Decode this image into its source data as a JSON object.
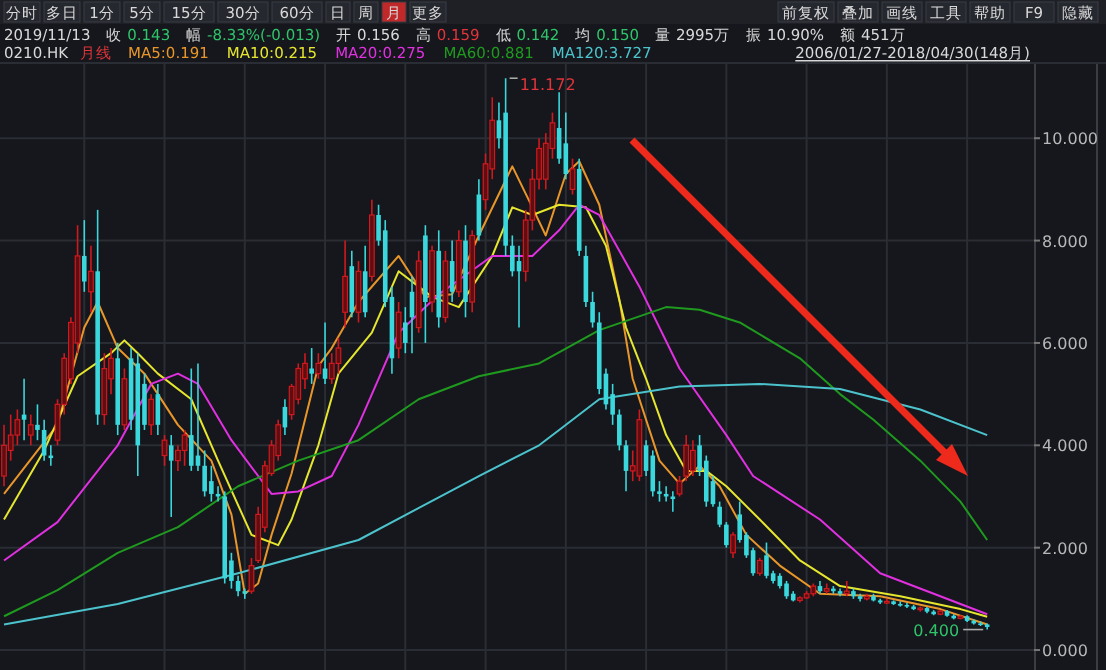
{
  "chart_data": {
    "type": "candlestick",
    "categories": [
      null,
      null,
      null,
      null,
      null,
      null,
      null,
      null,
      null,
      null,
      null,
      null,
      null,
      null,
      null,
      null,
      null,
      null,
      null,
      null,
      null,
      null,
      null,
      null,
      null,
      null,
      null,
      null,
      null,
      null,
      null,
      null,
      null,
      null,
      null,
      null,
      null,
      null,
      null,
      null,
      null,
      null,
      null,
      null,
      null,
      null,
      null,
      null,
      null,
      null,
      null,
      null,
      null,
      null,
      null,
      null,
      null,
      null,
      null,
      null,
      null,
      null,
      null,
      null,
      null,
      null,
      null,
      null,
      null,
      null,
      null,
      null,
      null,
      null,
      null,
      null,
      null,
      null,
      null,
      null,
      null,
      null,
      null,
      null,
      null,
      null,
      null,
      null,
      null,
      null,
      null,
      null,
      null,
      null,
      null,
      null,
      null,
      null,
      null,
      null,
      null,
      null,
      null,
      null,
      null,
      null,
      null,
      null,
      null,
      null,
      null,
      null,
      null,
      null,
      null,
      null,
      null,
      null,
      null,
      null,
      null,
      null,
      null,
      null,
      null,
      null,
      null,
      null,
      null,
      null,
      null,
      null,
      null,
      null,
      null,
      null,
      null,
      null,
      null,
      null,
      null,
      null,
      null,
      null,
      null,
      null,
      null,
      null
    ],
    "ohlc": [
      [
        3.4,
        4.4,
        3.2,
        4.0
      ],
      [
        3.9,
        4.6,
        3.7,
        4.2
      ],
      [
        4.2,
        4.7,
        4.0,
        4.5
      ],
      [
        4.6,
        5.3,
        4.1,
        4.5
      ],
      [
        4.2,
        4.6,
        4.0,
        4.4
      ],
      [
        4.4,
        4.8,
        4.1,
        4.3
      ],
      [
        4.3,
        4.5,
        3.7,
        3.8
      ],
      [
        3.8,
        4.0,
        3.6,
        3.75
      ],
      [
        4.1,
        4.9,
        4.0,
        4.8
      ],
      [
        4.8,
        5.8,
        4.6,
        5.7
      ],
      [
        5.3,
        6.5,
        5.2,
        6.4
      ],
      [
        6.0,
        8.3,
        5.8,
        7.7
      ],
      [
        7.7,
        8.4,
        7.0,
        7.2
      ],
      [
        7.0,
        7.9,
        6.6,
        7.4
      ],
      [
        7.4,
        8.6,
        4.4,
        4.6
      ],
      [
        4.6,
        5.8,
        4.4,
        5.5
      ],
      [
        5.3,
        5.9,
        5.0,
        5.7
      ],
      [
        5.7,
        6.0,
        4.2,
        4.4
      ],
      [
        4.4,
        5.5,
        4.3,
        5.3
      ],
      [
        5.7,
        5.9,
        4.3,
        4.5
      ],
      [
        5.6,
        5.8,
        3.4,
        4.0
      ],
      [
        5.2,
        5.4,
        4.3,
        4.4
      ],
      [
        4.4,
        5.0,
        4.2,
        4.9
      ],
      [
        5.0,
        5.2,
        4.2,
        4.4
      ],
      [
        3.8,
        4.2,
        3.6,
        4.1
      ],
      [
        4.0,
        4.2,
        2.6,
        3.7
      ],
      [
        3.7,
        4.0,
        3.5,
        3.9
      ],
      [
        3.9,
        4.3,
        3.6,
        4.2
      ],
      [
        4.2,
        5.5,
        3.5,
        3.6
      ],
      [
        3.8,
        5.6,
        3.5,
        3.6
      ],
      [
        3.6,
        3.9,
        3.0,
        3.1
      ],
      [
        3.3,
        3.6,
        2.9,
        3.05
      ],
      [
        3.05,
        3.2,
        2.9,
        3.0
      ],
      [
        3.0,
        3.1,
        1.3,
        1.4
      ],
      [
        1.75,
        1.9,
        1.2,
        1.35
      ],
      [
        1.35,
        1.45,
        1.05,
        1.15
      ],
      [
        1.15,
        1.2,
        1.0,
        1.1
      ],
      [
        1.15,
        1.8,
        1.1,
        1.65
      ],
      [
        1.75,
        2.8,
        1.7,
        2.65
      ],
      [
        2.4,
        3.7,
        2.3,
        3.6
      ],
      [
        3.45,
        4.1,
        3.4,
        4.0
      ],
      [
        3.8,
        4.5,
        3.7,
        4.4
      ],
      [
        4.75,
        4.9,
        4.2,
        4.35
      ],
      [
        4.6,
        5.2,
        4.5,
        5.15
      ],
      [
        4.9,
        5.6,
        4.8,
        5.5
      ],
      [
        5.3,
        5.8,
        5.1,
        5.6
      ],
      [
        5.5,
        5.9,
        5.2,
        5.4
      ],
      [
        5.4,
        5.8,
        5.3,
        5.6
      ],
      [
        5.5,
        6.4,
        5.2,
        5.3
      ],
      [
        5.3,
        5.8,
        5.2,
        5.6
      ],
      [
        5.6,
        6.1,
        5.4,
        5.9
      ],
      [
        6.6,
        8.0,
        6.3,
        7.3
      ],
      [
        7.5,
        7.8,
        6.5,
        6.6
      ],
      [
        6.6,
        7.6,
        6.4,
        7.4
      ],
      [
        7.4,
        7.9,
        6.5,
        6.6
      ],
      [
        7.3,
        8.8,
        7.2,
        8.5
      ],
      [
        8.5,
        8.7,
        7.9,
        8.0
      ],
      [
        8.2,
        8.4,
        6.7,
        6.8
      ],
      [
        6.9,
        7.1,
        5.4,
        5.7
      ],
      [
        5.9,
        6.8,
        5.7,
        6.6
      ],
      [
        6.4,
        6.7,
        5.8,
        6.0
      ],
      [
        7.0,
        7.3,
        5.8,
        6.5
      ],
      [
        6.3,
        7.8,
        6.2,
        7.6
      ],
      [
        8.1,
        8.3,
        6.0,
        6.8
      ],
      [
        6.8,
        7.9,
        6.6,
        7.8
      ],
      [
        7.8,
        8.2,
        6.3,
        6.5
      ],
      [
        6.5,
        7.8,
        6.4,
        7.6
      ],
      [
        7.6,
        8.0,
        6.8,
        7.0
      ],
      [
        7.0,
        8.2,
        6.9,
        8.0
      ],
      [
        8.0,
        8.3,
        6.5,
        6.8
      ],
      [
        6.8,
        8.2,
        6.6,
        8.1
      ],
      [
        8.9,
        9.2,
        8.0,
        8.1
      ],
      [
        8.8,
        9.7,
        8.6,
        9.5
      ],
      [
        9.4,
        10.8,
        9.2,
        10.35
      ],
      [
        10.35,
        10.7,
        9.8,
        10.0
      ],
      [
        10.5,
        11.172,
        7.7,
        7.9
      ],
      [
        7.9,
        8.1,
        7.3,
        7.4
      ],
      [
        7.6,
        7.9,
        6.3,
        7.4
      ],
      [
        7.4,
        8.6,
        7.2,
        8.4
      ],
      [
        8.4,
        9.4,
        8.2,
        9.2
      ],
      [
        9.2,
        10.0,
        9.0,
        9.8
      ],
      [
        9.2,
        10.1,
        9.0,
        9.9
      ],
      [
        9.8,
        10.5,
        9.6,
        10.3
      ],
      [
        10.2,
        10.9,
        9.5,
        9.6
      ],
      [
        9.9,
        10.5,
        9.2,
        9.3
      ],
      [
        9.0,
        9.6,
        8.9,
        9.4
      ],
      [
        9.4,
        9.6,
        7.7,
        7.8
      ],
      [
        7.7,
        7.9,
        6.7,
        6.8
      ],
      [
        6.8,
        7.0,
        6.3,
        6.4
      ],
      [
        6.4,
        6.6,
        5.0,
        5.1
      ],
      [
        5.4,
        5.5,
        4.7,
        4.8
      ],
      [
        5.0,
        5.2,
        4.4,
        4.6
      ],
      [
        4.6,
        4.7,
        3.9,
        4.0
      ],
      [
        4.0,
        4.1,
        3.1,
        3.5
      ],
      [
        3.5,
        3.9,
        3.3,
        3.6
      ],
      [
        3.4,
        4.7,
        3.3,
        4.5
      ],
      [
        4.0,
        4.1,
        3.4,
        3.5
      ],
      [
        3.8,
        3.9,
        3.0,
        3.1
      ],
      [
        3.1,
        3.3,
        2.9,
        3.05
      ],
      [
        3.05,
        3.2,
        2.9,
        3.0
      ],
      [
        3.0,
        3.1,
        2.7,
        2.95
      ],
      [
        3.05,
        3.4,
        3.0,
        3.3
      ],
      [
        3.4,
        4.2,
        3.3,
        4.0
      ],
      [
        3.5,
        4.1,
        3.4,
        3.9
      ],
      [
        4.0,
        4.2,
        3.4,
        3.5
      ],
      [
        3.7,
        3.8,
        2.8,
        2.9
      ],
      [
        3.3,
        3.4,
        2.8,
        2.85
      ],
      [
        2.8,
        2.9,
        2.4,
        2.45
      ],
      [
        2.45,
        2.5,
        2.0,
        2.05
      ],
      [
        1.9,
        2.3,
        1.8,
        2.25
      ],
      [
        2.65,
        2.9,
        2.1,
        2.15
      ],
      [
        2.25,
        2.3,
        1.8,
        1.85
      ],
      [
        1.95,
        2.0,
        1.45,
        1.5
      ],
      [
        1.5,
        1.8,
        1.45,
        1.75
      ],
      [
        1.85,
        2.1,
        1.4,
        1.45
      ],
      [
        1.5,
        1.55,
        1.3,
        1.35
      ],
      [
        1.45,
        1.5,
        1.2,
        1.25
      ],
      [
        1.3,
        1.35,
        1.0,
        1.05
      ],
      [
        1.1,
        1.15,
        0.95,
        0.97
      ],
      [
        0.97,
        1.05,
        0.93,
        1.02
      ],
      [
        1.02,
        1.15,
        1.0,
        1.1
      ],
      [
        1.1,
        1.3,
        1.05,
        1.25
      ],
      [
        1.25,
        1.35,
        1.1,
        1.15
      ],
      [
        1.15,
        1.3,
        1.1,
        1.2
      ],
      [
        1.2,
        1.25,
        1.1,
        1.15
      ],
      [
        1.15,
        1.2,
        1.05,
        1.1
      ],
      [
        1.1,
        1.35,
        1.05,
        1.15
      ],
      [
        1.15,
        1.2,
        1.0,
        1.05
      ],
      [
        1.05,
        1.1,
        0.95,
        1.0
      ],
      [
        1.0,
        1.1,
        0.97,
        1.05
      ],
      [
        1.05,
        1.1,
        0.95,
        0.97
      ],
      [
        0.97,
        1.0,
        0.9,
        0.93
      ],
      [
        0.93,
        1.0,
        0.9,
        0.95
      ],
      [
        0.95,
        0.97,
        0.88,
        0.9
      ],
      [
        0.9,
        0.95,
        0.85,
        0.88
      ],
      [
        0.88,
        0.92,
        0.82,
        0.85
      ],
      [
        0.85,
        0.88,
        0.78,
        0.8
      ],
      [
        0.8,
        0.85,
        0.75,
        0.82
      ],
      [
        0.82,
        0.84,
        0.72,
        0.75
      ],
      [
        0.75,
        0.78,
        0.68,
        0.7
      ],
      [
        0.7,
        0.78,
        0.68,
        0.76
      ],
      [
        0.76,
        0.78,
        0.65,
        0.67
      ],
      [
        0.67,
        0.7,
        0.6,
        0.62
      ],
      [
        0.62,
        0.68,
        0.6,
        0.66
      ],
      [
        0.66,
        0.68,
        0.55,
        0.57
      ],
      [
        0.57,
        0.6,
        0.5,
        0.52
      ],
      [
        0.52,
        0.56,
        0.47,
        0.5
      ],
      [
        0.5,
        0.52,
        0.4,
        0.45
      ]
    ],
    "series": [
      {
        "type": "line",
        "name": "MA5:0.191",
        "color": "#e8962a",
        "values": [
          3.05,
          null,
          null,
          null,
          null,
          null,
          null,
          null,
          4.4,
          null,
          null,
          null,
          6.3,
          null,
          6.8,
          null,
          null,
          5.9,
          null,
          null,
          null,
          5.4,
          null,
          null,
          null,
          null,
          4.4,
          null,
          null,
          null,
          null,
          3.7,
          null,
          null,
          2.65,
          null,
          1.1,
          null,
          1.3,
          null,
          2.25,
          null,
          null,
          3.45,
          null,
          null,
          null,
          5.55,
          null,
          5.9,
          null,
          null,
          null,
          6.8,
          null,
          null,
          null,
          null,
          null,
          7.7,
          null,
          null,
          null,
          6.9,
          null,
          null,
          null,
          6.95,
          null,
          null,
          null,
          8.1,
          null,
          null,
          null,
          null,
          9.45,
          null,
          null,
          8.65,
          null,
          8.1,
          null,
          null,
          9.3,
          null,
          9.55,
          null,
          null,
          8.7,
          null,
          null,
          6.85,
          null,
          5.3,
          null,
          null,
          null,
          3.7,
          null,
          null,
          3.25,
          null,
          null,
          3.6,
          null,
          null,
          3.2,
          null,
          null,
          null,
          2.25,
          null,
          null,
          null,
          null,
          1.65,
          null,
          null,
          null,
          null,
          null,
          1.1,
          null,
          null,
          null,
          null,
          null,
          null,
          null,
          null,
          1.05,
          null,
          null,
          null,
          null,
          null,
          null,
          null,
          null,
          0.8,
          null,
          null,
          null,
          null,
          null,
          null,
          0.5
        ]
      },
      {
        "type": "line",
        "name": "MA10:0.215",
        "color": "#e6e62e",
        "values": [
          2.55,
          null,
          null,
          null,
          null,
          null,
          3.9,
          null,
          null,
          null,
          null,
          5.35,
          null,
          null,
          null,
          null,
          5.8,
          null,
          6.05,
          null,
          5.8,
          null,
          null,
          5.4,
          null,
          null,
          null,
          null,
          4.9,
          null,
          null,
          null,
          3.7,
          null,
          null,
          null,
          null,
          2.25,
          null,
          null,
          null,
          2.05,
          null,
          2.55,
          null,
          null,
          null,
          4.0,
          null,
          null,
          5.4,
          null,
          null,
          null,
          null,
          6.2,
          null,
          null,
          null,
          7.4,
          null,
          null,
          null,
          null,
          6.9,
          null,
          null,
          null,
          6.7,
          null,
          null,
          null,
          null,
          7.7,
          null,
          null,
          8.65,
          null,
          null,
          8.5,
          null,
          null,
          null,
          8.7,
          null,
          null,
          null,
          8.65,
          null,
          null,
          7.9,
          null,
          null,
          6.3,
          null,
          null,
          5.3,
          null,
          null,
          4.2,
          null,
          null,
          3.5,
          null,
          null,
          3.5,
          null,
          null,
          3.2,
          null,
          null,
          null,
          null,
          2.55,
          null,
          null,
          null,
          null,
          null,
          1.75,
          null,
          null,
          null,
          null,
          null,
          1.25,
          null,
          null,
          null,
          null,
          null,
          null,
          null,
          null,
          1.05,
          null,
          null,
          null,
          null,
          null,
          null,
          null,
          null,
          0.8,
          null,
          null,
          null,
          0.65
        ]
      },
      {
        "type": "line",
        "name": "MA20:0.275",
        "color": "#e030e0",
        "values": [
          1.75,
          null,
          null,
          null,
          null,
          null,
          null,
          null,
          2.5,
          null,
          null,
          null,
          null,
          null,
          null,
          null,
          null,
          4.0,
          null,
          null,
          null,
          null,
          5.2,
          null,
          null,
          null,
          5.4,
          null,
          null,
          5.2,
          null,
          null,
          null,
          null,
          4.1,
          null,
          null,
          null,
          null,
          null,
          3.05,
          null,
          null,
          null,
          3.1,
          null,
          null,
          null,
          null,
          3.4,
          null,
          null,
          null,
          4.4,
          null,
          null,
          5.3,
          null,
          null,
          6.2,
          null,
          null,
          null,
          null,
          null,
          6.95,
          null,
          null,
          null,
          null,
          null,
          null,
          null,
          7.7,
          null,
          null,
          null,
          null,
          null,
          7.7,
          null,
          null,
          null,
          8.2,
          null,
          null,
          8.7,
          null,
          null,
          8.5,
          null,
          null,
          null,
          null,
          null,
          7.1,
          null,
          null,
          null,
          null,
          null,
          5.5,
          null,
          null,
          null,
          null,
          null,
          null,
          4.2,
          null,
          null,
          null,
          3.4,
          null,
          null,
          null,
          null,
          null,
          null,
          null,
          null,
          null,
          2.55,
          null,
          null,
          null,
          null,
          null,
          null,
          null,
          null,
          1.5,
          null,
          null,
          null,
          null,
          null,
          null,
          null,
          null,
          1.05,
          null,
          null,
          null,
          null,
          null,
          null,
          0.7
        ]
      },
      {
        "type": "line",
        "name": "MA60:0.881",
        "color": "#1f9a1f",
        "values": [
          0.66,
          null,
          null,
          null,
          null,
          null,
          null,
          null,
          1.17,
          null,
          null,
          null,
          null,
          null,
          null,
          null,
          null,
          1.9,
          null,
          null,
          null,
          null,
          null,
          null,
          null,
          null,
          2.4,
          null,
          null,
          null,
          null,
          null,
          null,
          null,
          null,
          3.2,
          null,
          null,
          null,
          null,
          null,
          null,
          null,
          null,
          3.7,
          null,
          null,
          null,
          null,
          null,
          null,
          null,
          null,
          4.1,
          null,
          null,
          null,
          null,
          null,
          null,
          null,
          null,
          4.9,
          null,
          null,
          null,
          null,
          null,
          null,
          null,
          null,
          5.35,
          null,
          null,
          null,
          null,
          null,
          null,
          null,
          null,
          5.6,
          null,
          null,
          null,
          null,
          null,
          null,
          null,
          null,
          6.25,
          null,
          null,
          null,
          null,
          null,
          null,
          null,
          null,
          null,
          6.7,
          null,
          null,
          null,
          null,
          6.65,
          null,
          null,
          null,
          null,
          null,
          6.4,
          null,
          null,
          null,
          null,
          null,
          null,
          null,
          null,
          5.7,
          null,
          null,
          null,
          null,
          null,
          5.0,
          null,
          null,
          null,
          null,
          4.5,
          null,
          null,
          null,
          null,
          null,
          null,
          3.7,
          null,
          null,
          null,
          null,
          null,
          2.9,
          null,
          null,
          null,
          2.15
        ]
      },
      {
        "type": "line",
        "name": "MA120:3.727",
        "color": "#4cc3cc",
        "values": [
          0.5,
          null,
          null,
          null,
          null,
          null,
          null,
          null,
          null,
          null,
          null,
          null,
          null,
          null,
          null,
          null,
          null,
          0.9,
          null,
          null,
          null,
          null,
          null,
          null,
          null,
          null,
          null,
          null,
          null,
          null,
          null,
          null,
          null,
          null,
          null,
          1.5,
          null,
          null,
          null,
          null,
          null,
          null,
          null,
          null,
          null,
          null,
          null,
          null,
          null,
          null,
          null,
          null,
          null,
          2.15,
          null,
          null,
          null,
          null,
          null,
          null,
          null,
          null,
          null,
          null,
          null,
          null,
          null,
          null,
          null,
          null,
          null,
          3.4,
          null,
          null,
          null,
          null,
          null,
          null,
          null,
          null,
          4.0,
          null,
          null,
          4.3,
          null,
          null,
          null,
          null,
          null,
          4.9,
          null,
          null,
          null,
          null,
          null,
          null,
          null,
          null,
          null,
          null,
          null,
          5.15,
          null,
          null,
          null,
          null,
          null,
          null,
          null,
          null,
          null,
          null,
          null,
          5.2,
          null,
          null,
          null,
          null,
          null,
          null,
          null,
          null,
          null,
          null,
          null,
          5.1,
          null,
          null,
          null,
          null,
          null,
          null,
          null,
          null,
          null,
          null,
          null,
          4.7,
          null,
          null,
          null,
          null,
          null,
          null,
          null,
          null,
          null,
          4.2
        ]
      }
    ],
    "ylim": [
      -0.39,
      11.45
    ],
    "yticks": [
      {
        "value": 0,
        "label": "0.000"
      },
      {
        "value": 2,
        "label": "2.000"
      },
      {
        "value": 4,
        "label": "4.000"
      },
      {
        "value": 6,
        "label": "6.000"
      },
      {
        "value": 8,
        "label": "8.000"
      },
      {
        "value": 10,
        "label": "10.000"
      }
    ],
    "grid": true,
    "legend": "top left",
    "tick_labels": "y",
    "line_style": "solid",
    "marker": "none",
    "annotations": [
      "分时",
      "多日",
      "1分",
      "5分",
      "15分",
      "30分",
      "60分",
      "日",
      "周",
      "月",
      "更多",
      "前复权",
      "叠加",
      "画线",
      "工具",
      "帮助",
      "F9",
      "隐藏",
      "2019/11/13",
      "收 0.143",
      "幅 -8.33%(-0.013)",
      "开 0.156",
      "高 0.159",
      "低 0.142",
      "均 0.150",
      "量 2995万",
      "振 10.90%",
      "额 451万",
      "0210.HK",
      "月线",
      "2006/01/27-2018/04/30(148月)",
      "11.172",
      "0.400"
    ]
  }
}
